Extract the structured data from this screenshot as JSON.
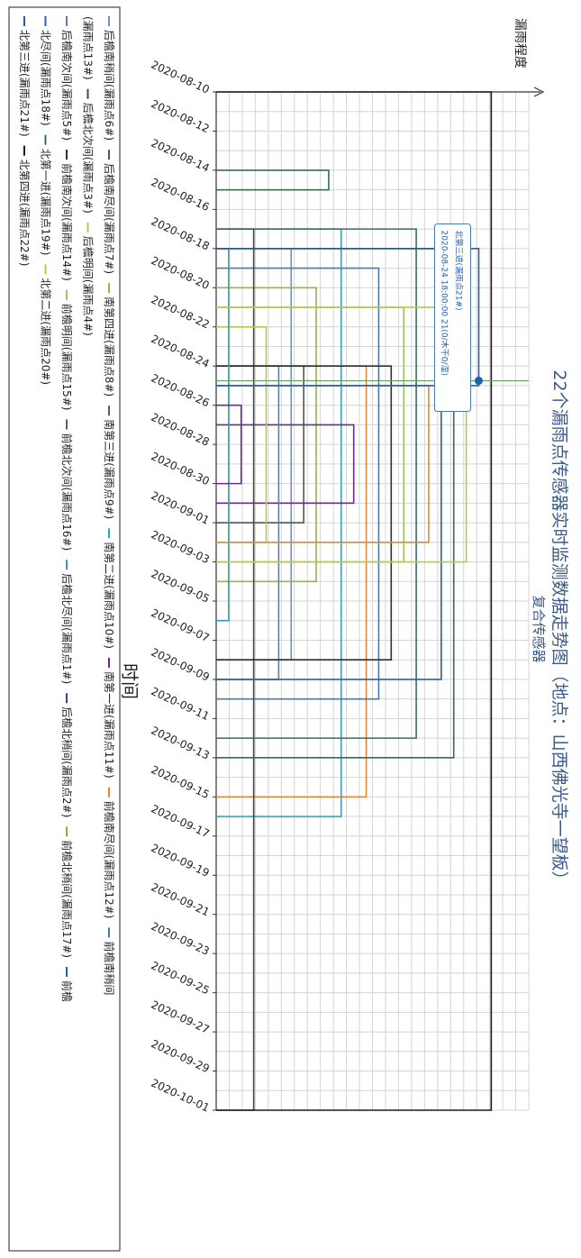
{
  "chart_data": {
    "type": "line",
    "title": "22个漏雨点传感器实时监测数据走势图（地点：山西佛光寺一望板）",
    "subtitle": "复合传感器",
    "xlabel": "时间",
    "ylabel": "漏雨程度",
    "grid": true,
    "legend_placement": "bottom",
    "categories": [
      "2020-08-10",
      "2020-08-12",
      "2020-08-14",
      "2020-08-16",
      "2020-08-18",
      "2020-08-20",
      "2020-08-22",
      "2020-08-24",
      "2020-08-26",
      "2020-08-28",
      "2020-08-30",
      "2020-09-01",
      "2020-09-03",
      "2020-09-05",
      "2020-09-07",
      "2020-09-09",
      "2020-09-11",
      "2020-09-13",
      "2020-09-15",
      "2020-09-17",
      "2020-09-19",
      "2020-09-21",
      "2020-09-23",
      "2020-09-25",
      "2020-09-27",
      "2020-09-29",
      "2020-10-01"
    ],
    "ylim": [
      0,
      25
    ],
    "tooltip": {
      "title": "北第三进(漏雨点21#)",
      "text": "2020-08-24 18:00:00 21(0/木干0/湿)",
      "x": "2020-08-24 18:00:00",
      "y": 21
    },
    "series": [
      {
        "name": "后檐南稍间(漏雨点6#)",
        "color": "#6f8fb8",
        "segments": [
          [
            "2020-08-18",
            "2020-09-08",
            6
          ]
        ]
      },
      {
        "name": "后檐南尽间(漏雨点7#)",
        "color": "#555555",
        "segments": [
          [
            "2020-08-24",
            "2020-09-01",
            7
          ]
        ]
      },
      {
        "name": "南第四进(漏雨点8#)",
        "color": "#8fb84a",
        "segments": [
          [
            "2020-08-20",
            "2020-09-04",
            8
          ]
        ]
      },
      {
        "name": "南第三进(漏雨点9#)",
        "color": "#3e6b4a",
        "segments": [
          [
            "2020-08-14",
            "2020-08-15",
            9
          ]
        ]
      },
      {
        "name": "南第二进(漏雨点10#)",
        "color": "#3ba3b8",
        "segments": [
          [
            "2020-08-17",
            "2020-09-16",
            10
          ]
        ]
      },
      {
        "name": "南第一进(漏雨点11#)",
        "color": "#6a2c8a",
        "segments": [
          [
            "2020-08-27",
            "2020-08-31",
            11
          ]
        ]
      },
      {
        "name": "前檐南尽间(漏雨点12#)",
        "color": "#e0873a",
        "segments": [
          [
            "2020-08-24",
            "2020-09-15",
            12
          ]
        ]
      },
      {
        "name": "前檐南稍间(漏雨点13#)",
        "color": "#4a78b0",
        "segments": [
          [
            "2020-08-19",
            "2020-09-10",
            13
          ]
        ]
      },
      {
        "name": "后檐北次间(漏雨点3#)",
        "color": "#444444",
        "segments": [
          [
            "2020-08-17",
            "2020-10-01",
            3
          ]
        ]
      },
      {
        "name": "后檐明间(漏雨点4#)",
        "color": "#b8c84a",
        "segments": [
          [
            "2020-08-22",
            "2020-09-02",
            4
          ]
        ]
      },
      {
        "name": "后檐南次间(漏雨点5#)",
        "color": "#5a7fb0",
        "segments": [
          [
            "2020-08-24",
            "2020-09-09",
            5
          ]
        ]
      },
      {
        "name": "前檐南次间(漏雨点14#)",
        "color": "#2f2f2f",
        "segments": [
          [
            "2020-08-24",
            "2020-09-08",
            14
          ]
        ]
      },
      {
        "name": "前檐明间(漏雨点15#)",
        "color": "#9acb5a",
        "segments": [
          [
            "2020-08-21",
            "2020-09-03",
            15
          ]
        ]
      },
      {
        "name": "前檐北次间(漏雨点16#)",
        "color": "#3a6a6a",
        "segments": [
          [
            "2020-08-17",
            "2020-09-12",
            16
          ]
        ]
      },
      {
        "name": "后檐北尽间(漏雨点1#)",
        "color": "#2aa0c0",
        "segments": [
          [
            "2020-08-18",
            "2020-09-06",
            1
          ]
        ]
      },
      {
        "name": "后檐北稍间(漏雨点2#)",
        "color": "#6a2c8a",
        "segments": [
          [
            "2020-08-26",
            "2020-08-30",
            2
          ]
        ]
      },
      {
        "name": "前檐北稍间(漏雨点17#)",
        "color": "#e0873a",
        "segments": [
          [
            "2020-08-25",
            "2020-09-02",
            17
          ]
        ]
      },
      {
        "name": "北尽间(漏雨点18#)",
        "color": "#2a5fa8",
        "segments": [
          [
            "2020-08-18",
            "2020-09-09",
            18
          ]
        ]
      },
      {
        "name": "北第一进(漏雨点19#)",
        "color": "#3b6b4a",
        "segments": [
          [
            "2020-08-18",
            "2020-09-13",
            19
          ]
        ]
      },
      {
        "name": "北第二进(漏雨点20#)",
        "color": "#b8c84a",
        "segments": [
          [
            "2020-08-21",
            "2020-09-03",
            20
          ]
        ]
      },
      {
        "name": "北第三进(漏雨点21#)",
        "color": "#1f5fb0",
        "segments": [
          [
            "2020-08-18",
            "2020-08-25",
            21
          ]
        ]
      },
      {
        "name": "北第四进(漏雨点22#)",
        "color": "#1a1a1a",
        "segments": [
          [
            "2020-08-10",
            "2020-10-01",
            22
          ]
        ]
      }
    ],
    "legend": {
      "lines": [
        [
          {
            "label": "后檐南稍间(漏雨点6#)",
            "color": "#6f8fb8"
          },
          {
            "label": "后檐南尽间(漏雨点7#)",
            "color": "#555555"
          },
          {
            "label": "南第四进(漏雨点8#)",
            "color": "#8fb84a"
          },
          {
            "label": "南第三进(漏雨点9#)",
            "color": "#3e6b4a"
          },
          {
            "label": "南第二进(漏雨点10#)",
            "color": "#3ba3b8"
          },
          {
            "label": "南第一进(漏雨点11#)",
            "color": "#6a2c8a"
          },
          {
            "label": "前檐南尽间(漏雨点12#)",
            "color": "#e0873a"
          },
          {
            "label": "前檐南稍间",
            "color": "#4a78b0"
          }
        ],
        [
          {
            "label": "(漏雨点13#)",
            "color": ""
          },
          {
            "label": "后檐北次间(漏雨点3#)",
            "color": "#444444"
          },
          {
            "label": "后檐明间(漏雨点4#)",
            "color": "#b8c84a"
          }
        ],
        [
          {
            "label": "后檐南次间(漏雨点5#)",
            "color": "#5a7fb0"
          },
          {
            "label": "前檐南次间(漏雨点14#)",
            "color": "#2f2f2f"
          },
          {
            "label": "前檐明间(漏雨点15#)",
            "color": "#9acb5a"
          },
          {
            "label": "前檐北次间(漏雨点16#)",
            "color": "#3a6a6a"
          },
          {
            "label": "后檐北尽间(漏雨点1#)",
            "color": "#2aa0c0"
          },
          {
            "label": "后檐北稍间(漏雨点2#)",
            "color": "#6a2c8a"
          },
          {
            "label": "前檐北稍间(漏雨点17#)",
            "color": "#e0873a"
          },
          {
            "label": "前檐",
            "color": "#2a5fa8"
          }
        ],
        [
          {
            "label": "北尽间(漏雨点18#)",
            "color": "#2a5fa8"
          },
          {
            "label": "北第一进(漏雨点19#)",
            "color": "#3b6b4a"
          },
          {
            "label": "北第二进(漏雨点20#)",
            "color": "#b8c84a"
          }
        ],
        [
          {
            "label": "北第三进(漏雨点21#)",
            "color": "#1f5fb0"
          },
          {
            "label": "北第四进(漏雨点22#)",
            "color": "#1a1a1a"
          }
        ]
      ]
    }
  }
}
